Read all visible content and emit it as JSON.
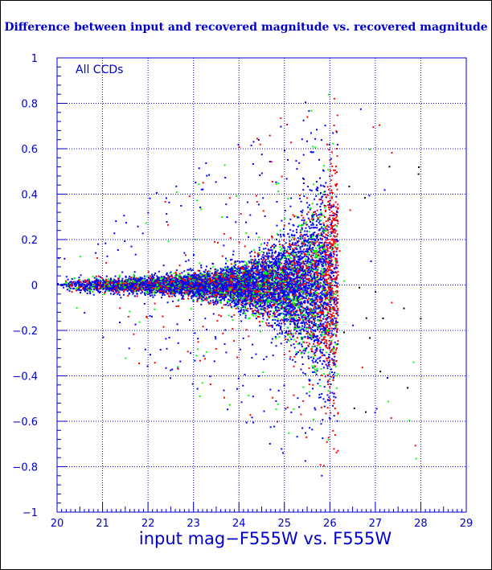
{
  "chart_data": {
    "type": "scatter",
    "title": "Difference between input and recovered magnitude vs. recovered magnitude",
    "xlabel": "input mag−F555W vs. F555W",
    "ylabel": "",
    "annotation": "All CCDs",
    "xlim": [
      20,
      29
    ],
    "ylim": [
      -1,
      1
    ],
    "x_ticks": [
      20,
      21,
      22,
      23,
      24,
      25,
      26,
      27,
      28,
      29
    ],
    "y_ticks": [
      -1,
      -0.8,
      -0.6,
      -0.4,
      -0.2,
      0,
      0.2,
      0.4,
      0.6,
      0.8,
      1
    ],
    "x_tick_labels": [
      "20",
      "21",
      "22",
      "23",
      "24",
      "25",
      "26",
      "27",
      "28",
      "29"
    ],
    "y_tick_labels": [
      "−1",
      "−0.8",
      "−0.6",
      "−0.4",
      "−0.2",
      "0",
      "0.2",
      "0.4",
      "0.6",
      "0.8",
      "1"
    ],
    "grid": true,
    "series_colors": [
      "#0000ff",
      "#00ff00",
      "#ff0000"
    ],
    "scatter_cutoff_x": 26.0,
    "series": [
      {
        "color": "#0000ff",
        "x": [
          20.1,
          20.5,
          21.0,
          21.5,
          22.0,
          22.5,
          23.0,
          23.5,
          24.0,
          24.5,
          25.0,
          25.5,
          25.9
        ],
        "y": [
          0.0,
          0.0,
          0.0,
          0.0,
          0.0,
          0.0,
          -0.01,
          -0.01,
          -0.02,
          -0.02,
          -0.03,
          -0.03,
          -0.05
        ]
      },
      {
        "color": "#00ff00",
        "x": [
          20.2,
          20.8,
          21.4,
          22.2,
          23.0,
          23.8,
          24.6,
          25.2,
          25.7,
          25.95
        ],
        "y": [
          0.01,
          0.0,
          0.01,
          0.0,
          0.02,
          -0.02,
          0.05,
          -0.08,
          0.15,
          -0.2
        ]
      },
      {
        "color": "#ff0000",
        "x": [
          20.3,
          21.2,
          22.4,
          23.4,
          24.4,
          25.3,
          25.8,
          26.05,
          26.1,
          26.15
        ],
        "y": [
          0.0,
          0.01,
          -0.01,
          0.02,
          -0.03,
          0.06,
          -0.12,
          0.2,
          -0.3,
          0.1
        ]
      }
    ]
  }
}
